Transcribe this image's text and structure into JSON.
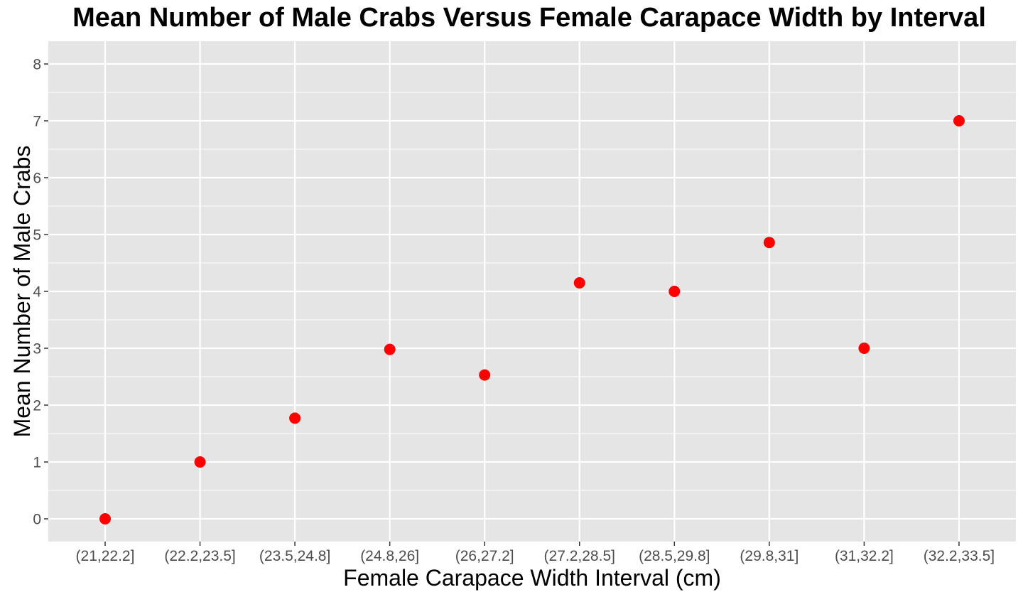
{
  "chart_data": {
    "type": "scatter",
    "title": "Mean Number of Male Crabs Versus Female Carapace Width by Interval",
    "xlabel": "Female Carapace Width Interval (cm)",
    "ylabel": "Mean Number of Male Crabs",
    "categories": [
      "(21,22.2]",
      "(22.2,23.5]",
      "(23.5,24.8]",
      "(24.8,26]",
      "(26,27.2]",
      "(27.2,28.5]",
      "(28.5,29.8]",
      "(29.8,31]",
      "(31,32.2]",
      "(32.2,33.5]"
    ],
    "values": [
      0,
      1,
      1.77,
      2.98,
      2.53,
      4.15,
      4.0,
      4.86,
      3.0,
      7.0
    ],
    "ylim": [
      -0.4,
      8.4
    ],
    "yticks": [
      0,
      1,
      2,
      3,
      4,
      5,
      6,
      7,
      8
    ],
    "grid": true,
    "legend": "none",
    "colors": {
      "point": "#ff0000",
      "panel": "#e5e5e5",
      "grid": "#ffffff",
      "tick_text": "#4d4d4d",
      "tick_mark": "#333333"
    }
  }
}
